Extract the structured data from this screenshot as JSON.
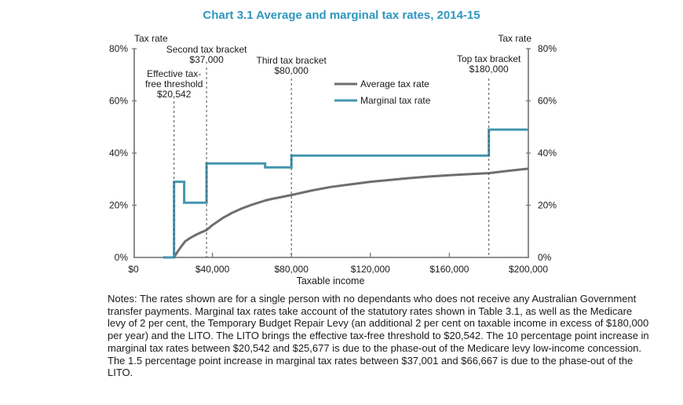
{
  "title": "Chart 3.1 Average and marginal tax rates, 2014-15",
  "colors": {
    "title": "#2e97be",
    "average_line": "#6d6e71",
    "marginal_line": "#4495af",
    "axis": "#7f7f7f",
    "dashed_line": "#4d4d4d",
    "text": "#1a1a1a"
  },
  "axes": {
    "left_axis_title": "Tax rate",
    "right_axis_title": "Tax rate",
    "x_axis_title": "Taxable income",
    "x_ticks": [
      "$0",
      "$40,000",
      "$80,000",
      "$120,000",
      "$160,000",
      "$200,000"
    ],
    "y_ticks_left": [
      "0%",
      "20%",
      "40%",
      "60%",
      "80%"
    ],
    "y_ticks_right": [
      "0%",
      "20%",
      "40%",
      "60%",
      "80%"
    ]
  },
  "legend": [
    {
      "label": "Average tax rate",
      "color": "#6d6e71"
    },
    {
      "label": "Marginal tax rate",
      "color": "#4495af"
    }
  ],
  "annotations": [
    {
      "name": "effective-tax-free-threshold",
      "x_value": 20542,
      "lines": [
        "Effective tax-",
        "free threshold",
        "$20,542"
      ]
    },
    {
      "name": "second-tax-bracket",
      "x_value": 37000,
      "lines": [
        "Second tax bracket",
        "$37,000"
      ]
    },
    {
      "name": "third-tax-bracket",
      "x_value": 80000,
      "lines": [
        "Third tax bracket",
        "$80,000"
      ]
    },
    {
      "name": "top-tax-bracket",
      "x_value": 180000,
      "lines": [
        "Top tax bracket",
        "$180,000"
      ]
    }
  ],
  "chart_data": {
    "type": "line",
    "title": "Chart 3.1 Average and marginal tax rates, 2014-15",
    "xlabel": "Taxable income",
    "ylabel": "Tax rate",
    "xlim": [
      0,
      200000
    ],
    "ylim": [
      0,
      80
    ],
    "x_tick_values": [
      0,
      40000,
      80000,
      120000,
      160000,
      200000
    ],
    "y_tick_values": [
      0,
      20,
      40,
      60,
      80
    ],
    "grid": false,
    "legend_position": "upper center",
    "series": [
      {
        "name": "Average tax rate",
        "color": "#6d6e71",
        "points": [
          [
            20542,
            0
          ],
          [
            21000,
            0.5
          ],
          [
            22000,
            1.8
          ],
          [
            24000,
            4.0
          ],
          [
            26120,
            6.1
          ],
          [
            28000,
            7.1
          ],
          [
            30000,
            8.0
          ],
          [
            32000,
            8.8
          ],
          [
            34000,
            9.5
          ],
          [
            37000,
            10.5
          ],
          [
            40000,
            12.4
          ],
          [
            45000,
            15.0
          ],
          [
            50000,
            17.1
          ],
          [
            55000,
            18.8
          ],
          [
            60000,
            20.2
          ],
          [
            66667,
            21.8
          ],
          [
            70000,
            22.4
          ],
          [
            80000,
            23.9
          ],
          [
            90000,
            25.6
          ],
          [
            100000,
            27.0
          ],
          [
            110000,
            28.0
          ],
          [
            120000,
            29.0
          ],
          [
            130000,
            29.7
          ],
          [
            140000,
            30.4
          ],
          [
            150000,
            31.0
          ],
          [
            160000,
            31.5
          ],
          [
            170000,
            31.9
          ],
          [
            180000,
            32.3
          ],
          [
            190000,
            33.2
          ],
          [
            200000,
            34.0
          ]
        ]
      },
      {
        "name": "Marginal tax rate",
        "color": "#4495af",
        "points": [
          [
            15000,
            0
          ],
          [
            20542,
            0
          ],
          [
            20542,
            29
          ],
          [
            25677,
            29
          ],
          [
            25677,
            21
          ],
          [
            37000,
            21
          ],
          [
            37000,
            36
          ],
          [
            66667,
            36
          ],
          [
            66667,
            34.5
          ],
          [
            80000,
            34.5
          ],
          [
            80000,
            39
          ],
          [
            180000,
            39
          ],
          [
            180000,
            49
          ],
          [
            200000,
            49
          ]
        ]
      }
    ]
  },
  "notes": "Notes: The rates shown are for a single person with no dependants who does not receive any Australian Government transfer payments. Marginal tax rates take account of the statutory rates shown in Table 3.1, as well as the Medicare levy of 2 per cent, the Temporary Budget Repair Levy (an additional 2 per cent on taxable income in excess of $180,000 per year) and the LITO. The LITO brings the effective tax-free threshold to $20,542. The 10 percentage point increase in marginal tax rates between $20,542 and $25,677 is due to the phase-out of the Medicare levy low-income concession. The 1.5 percentage point increase in marginal tax rates between $37,001 and $66,667 is due to the phase-out of the LITO."
}
